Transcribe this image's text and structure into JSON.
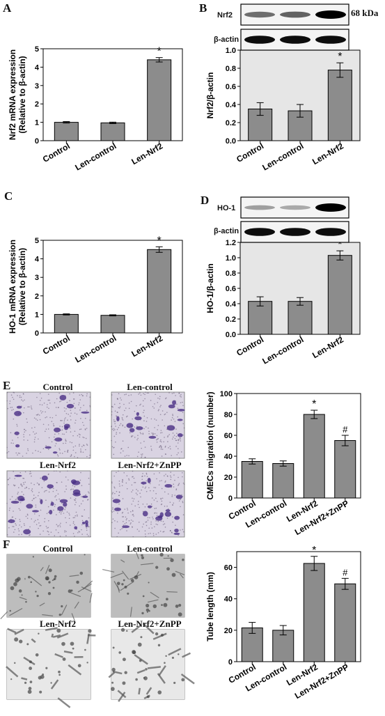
{
  "panel_labels": {
    "A": "A",
    "B": "B",
    "C": "C",
    "D": "D",
    "E": "E",
    "F": "F"
  },
  "blots": {
    "B": {
      "target": "Nrf2",
      "loading": "β-actin",
      "size": "68 kDa",
      "target_intensity": [
        0.55,
        0.6,
        1.0
      ],
      "loading_intensity": [
        0.95,
        0.95,
        0.95
      ]
    },
    "D": {
      "target": "HO-1",
      "loading": "β-actin",
      "target_intensity": [
        0.35,
        0.3,
        1.0
      ],
      "loading_intensity": [
        0.95,
        0.95,
        0.95
      ]
    }
  },
  "micrographs": {
    "E": [
      {
        "label": "Control",
        "cells": 0.45
      },
      {
        "label": "Len-control",
        "cells": 0.45
      },
      {
        "label": "Len-Nrf2",
        "cells": 0.9
      },
      {
        "label": "Len-Nrf2+ZnPP",
        "cells": 0.6
      }
    ],
    "F": [
      {
        "label": "Control"
      },
      {
        "label": "Len-control"
      },
      {
        "label": "Len-Nrf2"
      },
      {
        "label": "Len-Nrf2+ZnPP"
      }
    ]
  },
  "chart_data": [
    {
      "id": "A",
      "type": "bar",
      "categories": [
        "Control",
        "Len-control",
        "Len-Nrf2"
      ],
      "values": [
        1.0,
        0.97,
        4.4
      ],
      "errors": [
        0.04,
        0.04,
        0.12
      ],
      "annotations": [
        "",
        "",
        "*"
      ],
      "ylabel": "Nrf2 mRNA expression",
      "ylabel2": "(Relative to β-actin)",
      "ylim": [
        0,
        5
      ],
      "yticks": [
        0,
        1,
        2,
        3,
        4,
        5
      ],
      "ytick_labels": [
        "0",
        "1",
        "2",
        "3",
        "4",
        "5"
      ]
    },
    {
      "id": "B",
      "type": "bar",
      "categories": [
        "Control",
        "Len-control",
        "Len-Nrf2"
      ],
      "values": [
        0.35,
        0.33,
        0.78
      ],
      "errors": [
        0.07,
        0.07,
        0.08
      ],
      "annotations": [
        "",
        "",
        "*"
      ],
      "ylabel": "Nrf2/β-actin",
      "ylabel2": "",
      "ylim": [
        0,
        1.0
      ],
      "yticks": [
        0,
        0.2,
        0.4,
        0.6,
        0.8,
        1.0
      ],
      "ytick_labels": [
        "0.0",
        "0.2",
        "0.4",
        "0.6",
        "0.8",
        "1.0"
      ]
    },
    {
      "id": "C",
      "type": "bar",
      "categories": [
        "Control",
        "Len-control",
        "Len-Nrf2"
      ],
      "values": [
        1.0,
        0.95,
        4.5
      ],
      "errors": [
        0.03,
        0.03,
        0.15
      ],
      "annotations": [
        "",
        "",
        "*"
      ],
      "ylabel": "HO-1 mRNA expression",
      "ylabel2": "(Relative to β-actin)",
      "ylim": [
        0,
        5
      ],
      "yticks": [
        0,
        1,
        2,
        3,
        4,
        5
      ],
      "ytick_labels": [
        "0",
        "1",
        "2",
        "3",
        "4",
        "5"
      ]
    },
    {
      "id": "D",
      "type": "bar",
      "categories": [
        "Control",
        "Len-control",
        "Len-Nrf2"
      ],
      "values": [
        0.43,
        0.43,
        1.03
      ],
      "errors": [
        0.06,
        0.05,
        0.06
      ],
      "annotations": [
        "",
        "",
        "*"
      ],
      "ylabel": "HO-1/β-actin",
      "ylabel2": "",
      "ylim": [
        0,
        1.2
      ],
      "yticks": [
        0,
        0.2,
        0.4,
        0.6,
        0.8,
        1.0,
        1.2
      ],
      "ytick_labels": [
        "0.0",
        "0.2",
        "0.4",
        "0.6",
        "0.8",
        "1.0",
        "1.2"
      ]
    },
    {
      "id": "E",
      "type": "bar",
      "categories": [
        "Control",
        "Len-control",
        "Len-Nrf2",
        "Len-Nrf2+ZnPP"
      ],
      "values": [
        35,
        33,
        80,
        55
      ],
      "errors": [
        2.5,
        2.5,
        4,
        5
      ],
      "annotations": [
        "",
        "",
        "*",
        "#"
      ],
      "ylabel": "CMECs migration (number)",
      "ylabel2": "",
      "ylim": [
        0,
        100
      ],
      "yticks": [
        0,
        20,
        40,
        60,
        80,
        100
      ],
      "ytick_labels": [
        "0",
        "20",
        "40",
        "60",
        "80",
        "100"
      ]
    },
    {
      "id": "F",
      "type": "bar",
      "categories": [
        "Control",
        "Len-control",
        "Len-Nrf2",
        "Len-Nrf2+ZnPP"
      ],
      "values": [
        21.5,
        20,
        62.5,
        49.5
      ],
      "errors": [
        3.5,
        3,
        4.5,
        3.5
      ],
      "annotations": [
        "",
        "",
        "*",
        "#"
      ],
      "ylabel": "Tube length (mm)",
      "ylabel2": "",
      "ylim": [
        0,
        70
      ],
      "yticks": [
        0,
        20,
        40,
        60
      ],
      "ytick_labels": [
        "0",
        "20",
        "40",
        "60"
      ]
    }
  ]
}
